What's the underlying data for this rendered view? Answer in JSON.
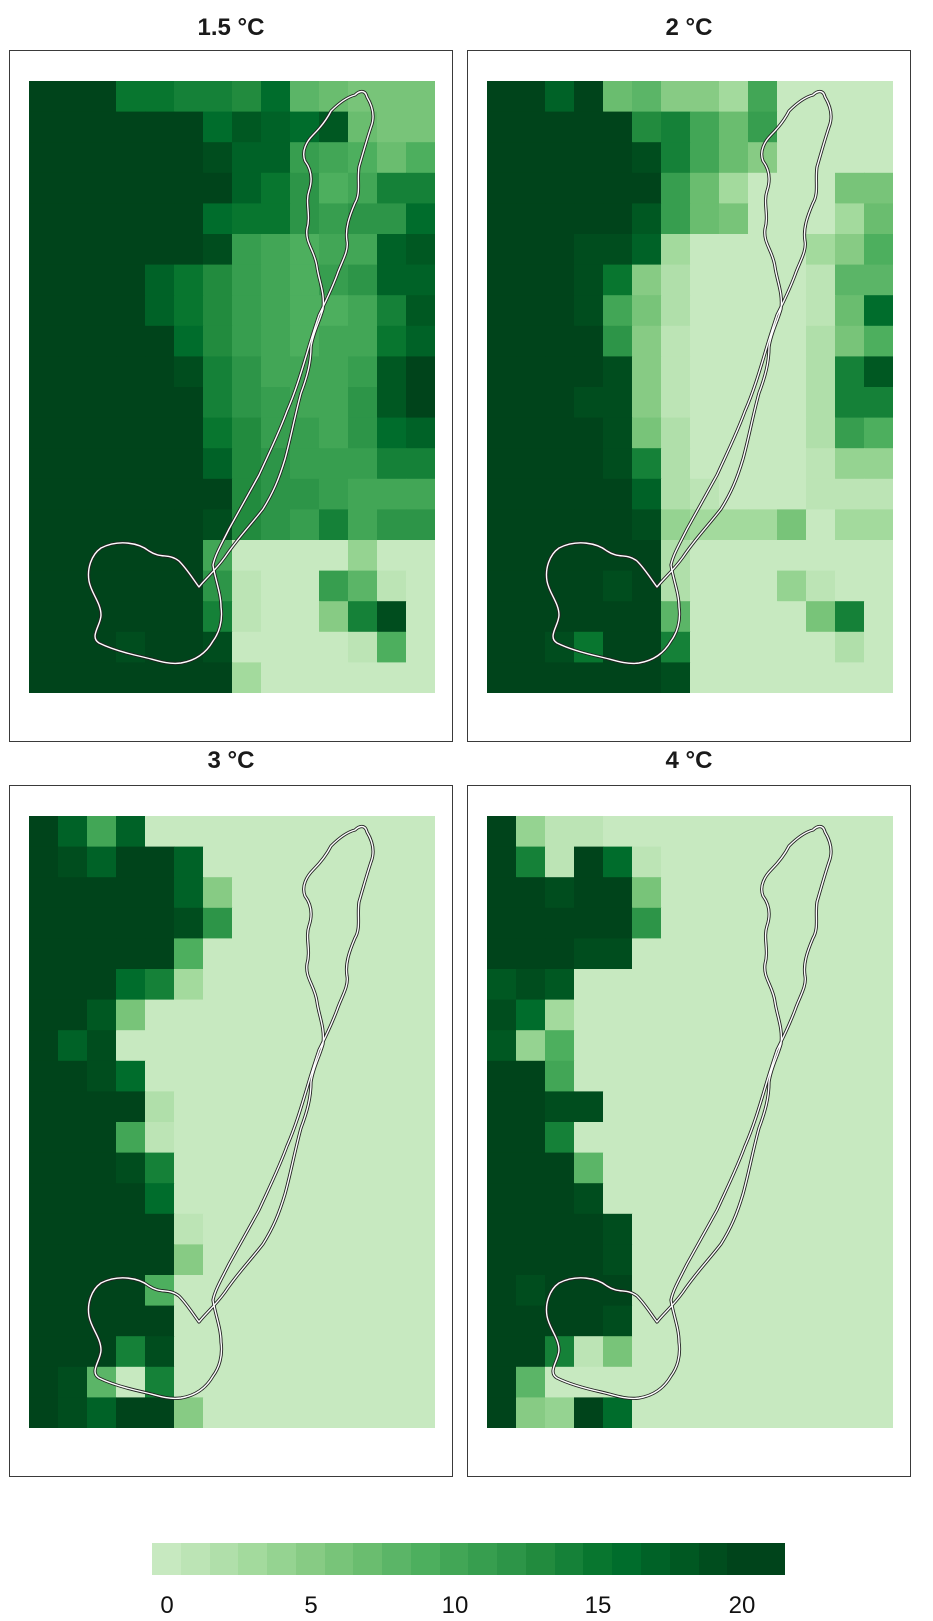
{
  "panels": [
    {
      "title": "1.5 °C",
      "grid": [
        "21 20 21 15 15 14 14 13 16 8 7 6 6 6",
        "21 21 21 21 21 21 16 18 17 16 18 7 6 6",
        "21 21 21 21 21 21 19 17 17 11 10 9 7 9",
        "21 21 21 21 21 21 20 17 15 12 9 10 14 14",
        "21 21 21 21 21 20 16 15 15 12 11 12 12 16",
        "21 21 21 21 21 20 19 11 10 9 10 10 17 18",
        "21 21 21 21 17 15 13 11 10 9 11 12 17 17",
        "21 21 21 21 17 15 13 11 10 9 9 10 14 18",
        "21 21 21 21 21 16 13 11 10 9 10 10 15 17",
        "21 21 21 21 21 19 14 12 10 10 10 11 18 20",
        "21 21 21 21 21 20 14 12 11 10 10 12 18 20",
        "21 21 21 21 21 21 15 13 11 11 10 12 16 17",
        "21 21 21 21 21 21 17 13 12 11 11 11 14 14",
        "21 21 21 21 21 21 20 13 12 12 11 10 10 10",
        "21 21 21 21 21 21 19 13 12 11 14 10 12 12",
        "21 21 21 21 21 21 10 0 0 0 0 4 0 0",
        "21 21 21 21 21 21 12 1 0 0 11 8 1 0",
        "21 21 21 21 21 21 14 1 0 0 5 14 19 0",
        "21 21 20 19 21 21 19 0 0 0 0 1 9 0",
        "21 21 21 21 21 21 21 3 0 0 0 0 0 0"
      ],
      "pond": [
        [
          0,
          14,
          15
        ],
        [
          0,
          15,
          16
        ],
        [
          0,
          16,
          17
        ],
        [
          0,
          17,
          14
        ],
        [
          1,
          15,
          15
        ],
        [
          1,
          16,
          17
        ],
        [
          2,
          16,
          14
        ]
      ]
    },
    {
      "title": "2 °C",
      "grid": [
        "21 21 17 21 7 8 5 5 3 10 0 0 0 0",
        "21 21 21 21 21 13 14 10 7 11 0 0 0 0",
        "21 21 21 21 21 19 14 10 7 5 0 0 0 0",
        "21 21 21 21 21 21 11 7 3 0 0 0 6 6",
        "21 21 21 21 21 18 11 7 6 0 0 0 3 7",
        "21 21 21 19 19 17 3 0 0 0 0 3 5 9",
        "21 21 21 19 15 5 2 0 0 0 0 1 8 8",
        "21 21 21 19 10 6 2 0 0 0 0 1 7 16",
        "21 21 21 21 12 5 1 0 0 0 0 2 6 9",
        "21 21 21 21 19 5 1 0 0 0 0 2 14 18",
        "21 21 21 19 19 5 1 0 0 0 0 2 14 14",
        "21 21 21 21 19 6 2 0 0 0 0 2 11 9",
        "21 21 21 21 19 14 2 0 0 0 0 1 4 4",
        "21 21 21 21 21 17 2 1 0 0 0 1 1 1",
        "21 21 21 21 21 19 4 3 3 3 6 0 3 3",
        "21 21 21 21 21 21 2 0 0 0 0 0 0 0",
        "21 21 21 21 19 21 2 0 0 0 4 1 0 0",
        "21 21 21 21 21 21 8 0 0 0 0 6 14 0",
        "21 21 19 15 21 21 14 0 0 0 0 0 2 0",
        "21 21 21 21 21 21 19 0 0 0 0 0 0 0"
      ],
      "pond": [
        [
          1,
          13,
          15
        ],
        [
          1,
          14,
          16
        ],
        [
          1,
          15,
          18
        ],
        [
          1,
          16,
          17
        ],
        [
          1,
          17,
          16
        ]
      ]
    },
    {
      "title": "3 °C",
      "grid": [
        "21 17 10 17 0 0 0 0 0 0 0 0 0 0",
        "21 19 17 21 21 17 0 0 0 0 0 0 0 0",
        "21 21 21 21 21 17 5 0 0 0 0 0 0 0",
        "21 21 21 21 21 19 12 0 0 0 0 0 0 0",
        "21 21 21 21 21 9 0 0 0 0 0 0 0 0",
        "21 21 20 16 14 3 0 0 0 0 0 0 0 0",
        "21 21 18 6 0 0 0 0 0 0 0 0 0 0",
        "21 17 19 0 0 0 0 0 0 0 0 0 0 0",
        "21 21 19 16 0 0 0 0 0 0 0 0 0 0",
        "21 21 21 21 2 0 0 0 0 0 0 0 0 0",
        "21 21 21 10 1 0 0 0 0 0 0 0 0 0",
        "21 21 21 19 14 0 0 0 0 0 0 0 0 0",
        "21 21 21 21 16 0 0 0 0 0 0 0 0 0",
        "21 21 21 21 21 1 0 0 0 0 0 0 0 0",
        "21 21 21 21 21 5 0 0 0 0 0 0 0 0",
        "21 21 21 21 9 0 0 0 0 0 0 0 0 0",
        "21 21 21 21 21 0 0 0 0 0 0 0 0 0",
        "21 21 21 14 19 0 0 0 0 0 0 0 0 0",
        "21 19 8 0 14 0 0 0 0 0 0 0 0 0",
        "21 19 17 21 21 5 0 0 0 0 0 0 0 0"
      ],
      "pond": [
        [
          2,
          15,
          19
        ],
        [
          2,
          16,
          20
        ]
      ]
    },
    {
      "title": "4 °C",
      "grid": [
        "21 4 1 1 0 0 0 0 0 0 0 0 0 0",
        "21 14 1 21 16 1 0 0 0 0 0 0 0 0",
        "21 21 19 21 20 6 0 0 0 0 0 0 0 0",
        "21 21 21 20 20 12 0 0 0 0 0 0 0 0",
        "21 21 20 19 19 0 0 0 0 0 0 0 0 0",
        "18 19 18 0 0 0 0 0 0 0 0 0 0 0",
        "19 16 3 0 0 0 0 0 0 0 0 0 0 0",
        "18 4 9 0 0 0 0 0 0 0 0 0 0 0",
        "21 21 10 0 0 0 0 0 0 0 0 0 0 0",
        "21 21 19 19 0 0 0 0 0 0 0 0 0 0",
        "21 21 14 0 0 0 0 0 0 0 0 0 0 0",
        "21 21 20 8 0 0 0 0 0 0 0 0 0 0",
        "21 21 21 19 0 0 0 0 0 0 0 0 0 0",
        "21 21 21 20 19 0 0 0 0 0 0 0 0 0",
        "21 21 21 21 19 0 0 0 0 0 0 0 0 0",
        "21 19 21 21 21 0 0 0 0 0 0 0 0 0",
        "21 21 21 21 19 0 0 0 0 0 0 0 0 0",
        "21 21 14 1 6 0 0 0 0 0 0 0 0 0",
        "20 8 0 0 0 0 0 0 0 0 0 0 0 0",
        "21 5 4 20 16 0 0 0 0 0 0 0 0 0"
      ],
      "pond": [
        [
          3,
          15,
          21
        ],
        [
          3,
          16,
          21
        ]
      ]
    }
  ],
  "legend": {
    "colors": [
      "#c7e9c0",
      "#bce4b5",
      "#b0dfaa",
      "#a3da9d",
      "#95d391",
      "#87cb84",
      "#78c479",
      "#6abd6f",
      "#5bb567",
      "#4daf5e",
      "#42a656",
      "#379e4f",
      "#2d9548",
      "#228b3e",
      "#158138",
      "#08762f",
      "#006d2c",
      "#006227",
      "#005822",
      "#004d1e",
      "#00441b",
      "#00441b"
    ],
    "ticks": [
      "0",
      "5",
      "10",
      "15",
      "20"
    ],
    "tick_values": [
      0,
      5,
      10,
      15,
      20
    ],
    "max": 22
  }
}
